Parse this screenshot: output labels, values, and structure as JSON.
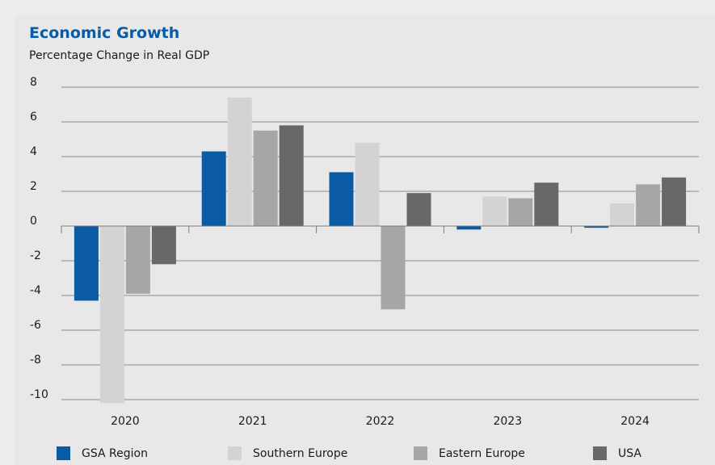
{
  "title": "Economic Growth",
  "subtitle": "Percentage Change in Real GDP",
  "chart_data": {
    "type": "bar",
    "categories": [
      "2020",
      "2021",
      "2022",
      "2023",
      "2024"
    ],
    "series": [
      {
        "name": "GSA Region",
        "color": "#0a5aa5",
        "values": [
          -4.3,
          4.3,
          3.1,
          -0.2,
          -0.1
        ]
      },
      {
        "name": "Southern Europe",
        "color": "#d3d3d3",
        "values": [
          -10.2,
          7.4,
          4.8,
          1.7,
          1.3
        ]
      },
      {
        "name": "Eastern Europe",
        "color": "#a6a6a6",
        "values": [
          -3.9,
          5.5,
          -4.8,
          1.6,
          2.4
        ]
      },
      {
        "name": "USA",
        "color": "#686868",
        "values": [
          -2.2,
          5.8,
          1.9,
          2.5,
          2.8
        ]
      }
    ],
    "yticks": [
      "8",
      "6",
      "4",
      "2",
      "0",
      "-2",
      "-4",
      "-6",
      "-8",
      "-10"
    ],
    "ylim": [
      -10,
      8
    ],
    "grid": true,
    "legend": "bottom"
  }
}
